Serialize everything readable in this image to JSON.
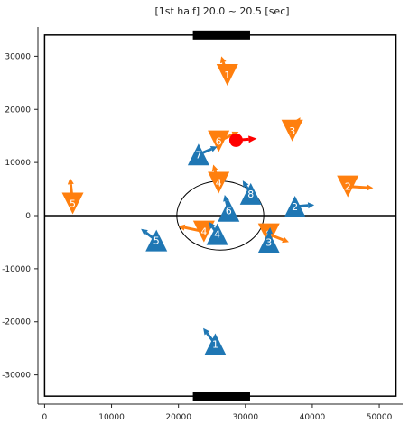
{
  "chart_data": {
    "type": "scatter",
    "title": "[1st half] 20.0 ~ 20.5 [sec]",
    "xlabel": "",
    "ylabel": "",
    "xlim": [
      -1000,
      53500
    ],
    "ylim": [
      -35500,
      35500
    ],
    "xticks": [
      0,
      10000,
      20000,
      30000,
      40000,
      50000
    ],
    "yticks": [
      30000,
      20000,
      10000,
      0,
      -10000,
      -20000,
      -30000
    ],
    "pitch": {
      "x_min": 0,
      "x_max": 52500,
      "y_min": -34000,
      "y_max": 34000,
      "center_x": 26250,
      "center_circle_radius": 6500,
      "goal_x_min": 22150,
      "goal_x_max": 30700
    },
    "teams": {
      "orange": {
        "color": "#ff7f0e",
        "direction": "down"
      },
      "blue": {
        "color": "#1f77b4",
        "direction": "up"
      }
    },
    "ball": {
      "x": 28600,
      "y": 14200,
      "color": "#ff0000",
      "dx": 3100,
      "dy": 300
    },
    "series": [
      {
        "team": "orange",
        "players": [
          {
            "label": "1",
            "x": 27300,
            "y": 26500,
            "dx": -900,
            "dy": 3500
          },
          {
            "label": "2",
            "x": 45300,
            "y": 5500,
            "dx": 3800,
            "dy": -300
          },
          {
            "label": "3",
            "x": 37000,
            "y": 16000,
            "dx": 1200,
            "dy": 2500
          },
          {
            "label": "4",
            "x": 26000,
            "y": 6200,
            "dx": -800,
            "dy": 3400
          },
          {
            "label": "4",
            "x": 23800,
            "y": -3000,
            "dx": -3800,
            "dy": 1000
          },
          {
            "label": "5",
            "x": 4200,
            "y": 2300,
            "dx": -400,
            "dy": 4800
          },
          {
            "label": "6",
            "x": 26000,
            "y": 14000,
            "dx": 3000,
            "dy": 1800
          },
          {
            "label": "8",
            "x": 33500,
            "y": -3500,
            "dx": 3000,
            "dy": -1500
          }
        ]
      },
      {
        "team": "blue",
        "players": [
          {
            "label": "1",
            "x": 25500,
            "y": -24200,
            "dx": -1800,
            "dy": 3000
          },
          {
            "label": "2",
            "x": 37400,
            "y": 1700,
            "dx": 2900,
            "dy": 300
          },
          {
            "label": "3",
            "x": 33500,
            "y": -5000,
            "dx": 200,
            "dy": 2800
          },
          {
            "label": "4",
            "x": 25800,
            "y": -3500,
            "dx": -1200,
            "dy": 2300
          },
          {
            "label": "5",
            "x": 16700,
            "y": -4700,
            "dx": -2300,
            "dy": 2200
          },
          {
            "label": "6",
            "x": 27500,
            "y": 900,
            "dx": -600,
            "dy": 3000
          },
          {
            "label": "7",
            "x": 23000,
            "y": 11500,
            "dx": 2800,
            "dy": 1500
          },
          {
            "label": "8",
            "x": 30800,
            "y": 4100,
            "dx": -1200,
            "dy": 2500
          }
        ]
      }
    ]
  }
}
